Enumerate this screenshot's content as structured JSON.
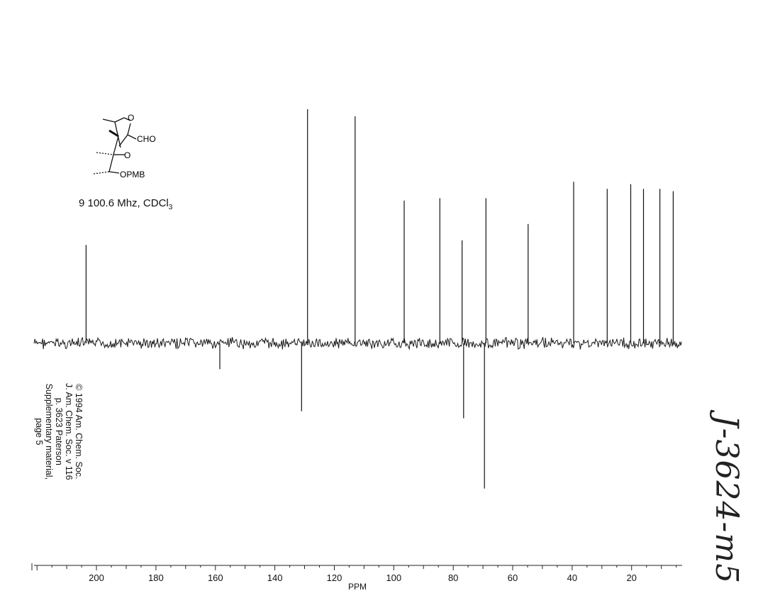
{
  "caption": {
    "compound": "9",
    "frequency": "100.6 Mhz,",
    "solvent_main": "CDCl",
    "solvent_sub": "3"
  },
  "structure": {
    "labels": [
      "O",
      "CHO",
      "O",
      "OPMB"
    ]
  },
  "copyright": {
    "line1": "© 1994 Am. Chem. Soc.",
    "line2": "J. Am. Chem. Soc. v 116",
    "line3": "p. 3623 Paterson",
    "line4": "Supplementary material,",
    "line5": "page 5"
  },
  "handwritten_note": "J-3624-m5",
  "chart_data": {
    "type": "nmr-spectrum",
    "xlabel": "PPM",
    "x_reversed": true,
    "xlim": [
      221,
      3
    ],
    "x_ticks": [
      200,
      180,
      160,
      140,
      120,
      100,
      80,
      60,
      40,
      20
    ],
    "peaks": [
      {
        "ppm": 203.5,
        "intensity": 0.42
      },
      {
        "ppm": 158.5,
        "intensity": -0.11
      },
      {
        "ppm": 131.0,
        "intensity": -0.29
      },
      {
        "ppm": 129.0,
        "intensity": 1.0
      },
      {
        "ppm": 113.0,
        "intensity": 0.97
      },
      {
        "ppm": 96.5,
        "intensity": 0.61
      },
      {
        "ppm": 84.5,
        "intensity": 0.62
      },
      {
        "ppm": 77.0,
        "intensity": 0.44
      },
      {
        "ppm": 76.5,
        "intensity": -0.32
      },
      {
        "ppm": 69.5,
        "intensity": -0.62
      },
      {
        "ppm": 69.0,
        "intensity": 0.62
      },
      {
        "ppm": 54.8,
        "intensity": 0.51
      },
      {
        "ppm": 39.5,
        "intensity": 0.69
      },
      {
        "ppm": 28.2,
        "intensity": 0.66
      },
      {
        "ppm": 20.3,
        "intensity": 0.68
      },
      {
        "ppm": 16.0,
        "intensity": 0.66
      },
      {
        "ppm": 10.5,
        "intensity": 0.66
      },
      {
        "ppm": 6.0,
        "intensity": 0.65
      }
    ]
  }
}
